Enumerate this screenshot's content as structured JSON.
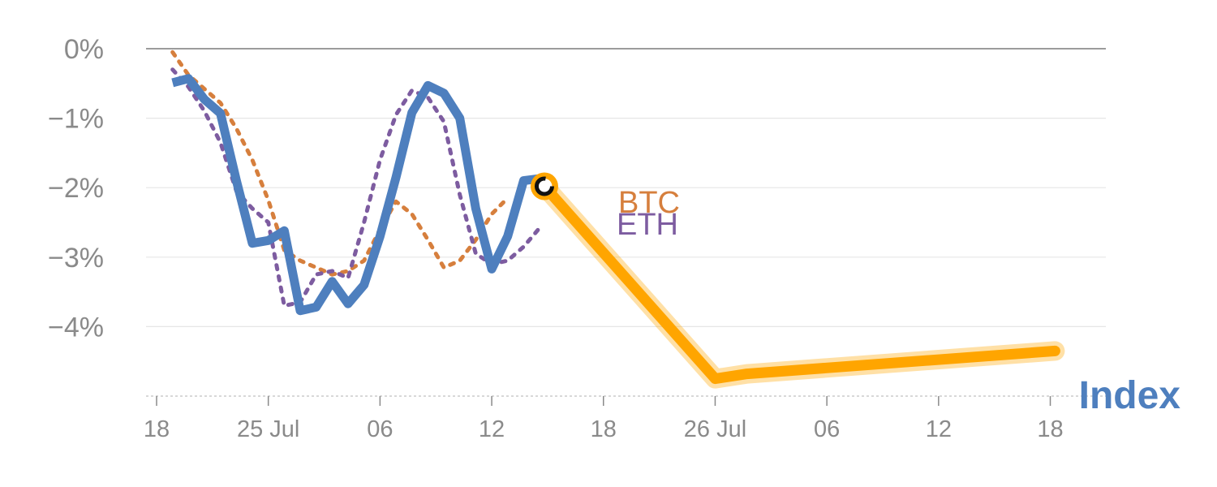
{
  "chart_data": {
    "type": "line",
    "y_unit": "%",
    "ylim": [
      -5,
      0
    ],
    "y_ticks": [
      {
        "value": 0,
        "label": "0%"
      },
      {
        "value": -1,
        "label": "−1%"
      },
      {
        "value": -2,
        "label": "−2%"
      },
      {
        "value": -3,
        "label": "−3%"
      },
      {
        "value": -4,
        "label": "−4%"
      }
    ],
    "x_ticks": [
      {
        "day": 0,
        "label": "18"
      },
      {
        "day": 7,
        "label": "25 Jul"
      },
      {
        "day": 14,
        "label": "06"
      },
      {
        "day": 21,
        "label": "12"
      },
      {
        "day": 28,
        "label": "18"
      },
      {
        "day": 35,
        "label": "26 Jul"
      },
      {
        "day": 42,
        "label": "06"
      },
      {
        "day": 49,
        "label": "12"
      },
      {
        "day": 56,
        "label": "18"
      }
    ],
    "grid": true,
    "series": [
      {
        "name": "",
        "color": "#4e7fbe",
        "style": "solid",
        "points": [
          [
            1,
            -0.49
          ],
          [
            2,
            -0.43
          ],
          [
            3,
            -0.73
          ],
          [
            4,
            -0.93
          ],
          [
            5,
            -1.9
          ],
          [
            6,
            -2.8
          ],
          [
            7,
            -2.76
          ],
          [
            8,
            -2.62
          ],
          [
            9,
            -3.77
          ],
          [
            10,
            -3.72
          ],
          [
            11,
            -3.35
          ],
          [
            12,
            -3.67
          ],
          [
            13,
            -3.4
          ],
          [
            14,
            -2.7
          ],
          [
            15,
            -1.85
          ],
          [
            16,
            -0.92
          ],
          [
            17,
            -0.53
          ],
          [
            18,
            -0.64
          ],
          [
            19,
            -1.0
          ],
          [
            20,
            -2.3
          ],
          [
            21,
            -3.17
          ],
          [
            22,
            -2.7
          ],
          [
            23,
            -1.9
          ],
          [
            24,
            -1.87
          ]
        ]
      },
      {
        "name": "BTC",
        "color": "#d67f3d",
        "style": "dotted",
        "points": [
          [
            1,
            -0.05
          ],
          [
            2,
            -0.38
          ],
          [
            3,
            -0.58
          ],
          [
            4,
            -0.78
          ],
          [
            5,
            -1.15
          ],
          [
            6,
            -1.6
          ],
          [
            7,
            -2.18
          ],
          [
            8,
            -2.9
          ],
          [
            9,
            -3.05
          ],
          [
            10,
            -3.15
          ],
          [
            11,
            -3.25
          ],
          [
            12,
            -3.2
          ],
          [
            13,
            -3.05
          ],
          [
            14,
            -2.6
          ],
          [
            15,
            -2.2
          ],
          [
            16,
            -2.38
          ],
          [
            17,
            -2.75
          ],
          [
            18,
            -3.15
          ],
          [
            19,
            -3.05
          ],
          [
            20,
            -2.75
          ],
          [
            21,
            -2.38
          ],
          [
            22,
            -2.15
          ]
        ]
      },
      {
        "name": "ETH",
        "color": "#7d5ca0",
        "style": "dotted",
        "points": [
          [
            1,
            -0.3
          ],
          [
            2,
            -0.55
          ],
          [
            3,
            -0.9
          ],
          [
            4,
            -1.35
          ],
          [
            5,
            -2.05
          ],
          [
            6,
            -2.3
          ],
          [
            7,
            -2.5
          ],
          [
            8,
            -3.7
          ],
          [
            9,
            -3.65
          ],
          [
            10,
            -3.25
          ],
          [
            11,
            -3.2
          ],
          [
            12,
            -3.3
          ],
          [
            13,
            -2.5
          ],
          [
            14,
            -1.6
          ],
          [
            15,
            -0.95
          ],
          [
            16,
            -0.6
          ],
          [
            17,
            -0.7
          ],
          [
            18,
            -1.05
          ],
          [
            19,
            -2.1
          ],
          [
            20,
            -2.95
          ],
          [
            21,
            -3.1
          ],
          [
            22,
            -3.05
          ],
          [
            23,
            -2.85
          ],
          [
            24,
            -2.58
          ]
        ]
      }
    ],
    "highlight": {
      "name": "Index",
      "color": "#ffa500",
      "label_color": "#4e7fbe",
      "points": [
        [
          24.3,
          -1.98
        ],
        [
          35,
          -4.75
        ],
        [
          37,
          -4.68
        ],
        [
          56.3,
          -4.35
        ]
      ]
    }
  }
}
